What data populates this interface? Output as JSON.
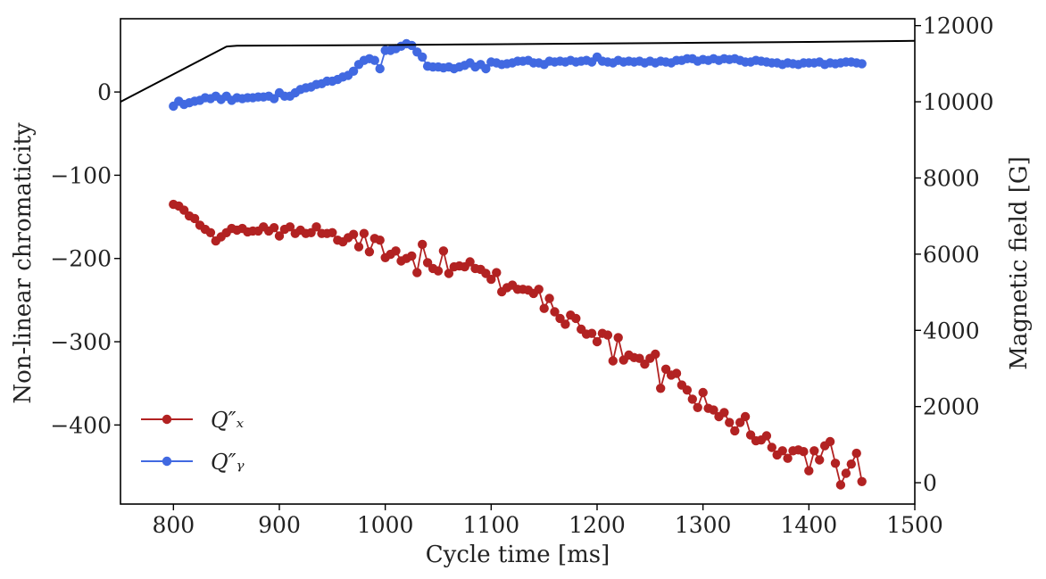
{
  "chart_data": {
    "type": "line",
    "xlabel": "Cycle time [ms]",
    "ylabel": "Non-linear chromaticity",
    "y2label": "Magnetic field [G]",
    "xlim": [
      750,
      1500
    ],
    "ylim": [
      -495,
      88
    ],
    "y2lim": [
      -560,
      12180
    ],
    "xticks": [
      800,
      900,
      1000,
      1100,
      1200,
      1300,
      1400,
      1500
    ],
    "yticks": [
      0,
      -100,
      -200,
      -300,
      -400
    ],
    "y2ticks": [
      0,
      2000,
      4000,
      6000,
      8000,
      10000,
      12000
    ],
    "tick_labels": {
      "x": [
        "800",
        "900",
        "1000",
        "1100",
        "1200",
        "1300",
        "1400",
        "1500"
      ],
      "y": [
        "0",
        "−100",
        "−200",
        "−300",
        "−400"
      ],
      "y2": [
        "0",
        "2000",
        "4000",
        "6000",
        "8000",
        "10000",
        "12000"
      ]
    },
    "grid": false,
    "legend_position": "lower-left",
    "legend": [
      "Q″ₓ",
      "Q″ᵧ"
    ],
    "series": [
      {
        "name": "Q″ₓ",
        "axis": "left",
        "color": "#b22222",
        "marker": "circle",
        "x": [
          800,
          805,
          810,
          815,
          820,
          825,
          830,
          835,
          840,
          845,
          850,
          855,
          860,
          865,
          870,
          875,
          880,
          885,
          890,
          895,
          900,
          905,
          910,
          915,
          920,
          925,
          930,
          935,
          940,
          945,
          950,
          955,
          960,
          965,
          970,
          975,
          980,
          985,
          990,
          995,
          1000,
          1005,
          1010,
          1015,
          1020,
          1025,
          1030,
          1035,
          1040,
          1045,
          1050,
          1055,
          1060,
          1065,
          1070,
          1075,
          1080,
          1085,
          1090,
          1095,
          1100,
          1105,
          1110,
          1115,
          1120,
          1125,
          1130,
          1135,
          1140,
          1145,
          1150,
          1155,
          1160,
          1165,
          1170,
          1175,
          1180,
          1185,
          1190,
          1195,
          1200,
          1205,
          1210,
          1215,
          1220,
          1225,
          1230,
          1235,
          1240,
          1245,
          1250,
          1255,
          1260,
          1265,
          1270,
          1275,
          1280,
          1285,
          1290,
          1295,
          1300,
          1305,
          1310,
          1315,
          1320,
          1325,
          1330,
          1335,
          1340,
          1345,
          1350,
          1355,
          1360,
          1365,
          1370,
          1375,
          1380,
          1385,
          1390,
          1395,
          1400,
          1405,
          1410,
          1415,
          1420,
          1425,
          1430,
          1435,
          1440,
          1445,
          1450
        ],
        "values": [
          -135,
          -137,
          -142,
          -149,
          -152,
          -160,
          -165,
          -169,
          -179,
          -174,
          -169,
          -164,
          -166,
          -164,
          -168,
          -167,
          -167,
          -162,
          -167,
          -163,
          -173,
          -165,
          -162,
          -170,
          -166,
          -170,
          -169,
          -162,
          -170,
          -170,
          -169,
          -178,
          -180,
          -175,
          -171,
          -186,
          -170,
          -192,
          -176,
          -178,
          -199,
          -195,
          -191,
          -203,
          -200,
          -197,
          -217,
          -183,
          -205,
          -212,
          -215,
          -191,
          -218,
          -210,
          -209,
          -210,
          -204,
          -212,
          -213,
          -218,
          -225,
          -217,
          -240,
          -235,
          -232,
          -237,
          -237,
          -238,
          -242,
          -237,
          -260,
          -248,
          -264,
          -272,
          -279,
          -268,
          -272,
          -285,
          -291,
          -290,
          -300,
          -290,
          -292,
          -323,
          -295,
          -322,
          -316,
          -319,
          -320,
          -327,
          -320,
          -315,
          -356,
          -333,
          -340,
          -338,
          -352,
          -358,
          -369,
          -379,
          -361,
          -380,
          -382,
          -390,
          -385,
          -397,
          -407,
          -397,
          -390,
          -412,
          -419,
          -418,
          -413,
          -427,
          -436,
          -431,
          -440,
          -431,
          -430,
          -432,
          -455,
          -431,
          -442,
          -425,
          -420,
          -446,
          -472,
          -458,
          -447,
          -434,
          -468
        ]
      },
      {
        "name": "Q″ᵧ",
        "axis": "left",
        "color": "#4169e1",
        "marker": "circle",
        "x": [
          800,
          805,
          810,
          815,
          820,
          825,
          830,
          835,
          840,
          845,
          850,
          855,
          860,
          865,
          870,
          875,
          880,
          885,
          890,
          895,
          900,
          905,
          910,
          915,
          920,
          925,
          930,
          935,
          940,
          945,
          950,
          955,
          960,
          965,
          970,
          975,
          980,
          985,
          990,
          995,
          1000,
          1005,
          1010,
          1015,
          1020,
          1025,
          1030,
          1035,
          1040,
          1045,
          1050,
          1055,
          1060,
          1065,
          1070,
          1075,
          1080,
          1085,
          1090,
          1095,
          1100,
          1105,
          1110,
          1115,
          1120,
          1125,
          1130,
          1135,
          1140,
          1145,
          1150,
          1155,
          1160,
          1165,
          1170,
          1175,
          1180,
          1185,
          1190,
          1195,
          1200,
          1205,
          1210,
          1215,
          1220,
          1225,
          1230,
          1235,
          1240,
          1245,
          1250,
          1255,
          1260,
          1265,
          1270,
          1275,
          1280,
          1285,
          1290,
          1295,
          1300,
          1305,
          1310,
          1315,
          1320,
          1325,
          1330,
          1335,
          1340,
          1345,
          1350,
          1355,
          1360,
          1365,
          1370,
          1375,
          1380,
          1385,
          1390,
          1395,
          1400,
          1405,
          1410,
          1415,
          1420,
          1425,
          1430,
          1435,
          1440,
          1445,
          1450
        ],
        "values": [
          -17,
          -11,
          -15,
          -13,
          -11,
          -10,
          -7,
          -8,
          -5,
          -9,
          -5,
          -10,
          -7,
          -8,
          -7,
          -7,
          -6,
          -6,
          -5,
          -8,
          -1,
          -5,
          -5,
          -1,
          3,
          5,
          6,
          9,
          10,
          13,
          13,
          15,
          18,
          20,
          25,
          33,
          38,
          40,
          38,
          28,
          50,
          50,
          52,
          55,
          58,
          56,
          48,
          42,
          31,
          30,
          30,
          29,
          30,
          28,
          30,
          32,
          35,
          30,
          33,
          28,
          36,
          35,
          33,
          34,
          35,
          37,
          37,
          38,
          35,
          35,
          33,
          37,
          36,
          37,
          36,
          38,
          36,
          37,
          38,
          36,
          42,
          37,
          36,
          35,
          38,
          36,
          37,
          36,
          37,
          35,
          37,
          35,
          37,
          36,
          35,
          38,
          38,
          40,
          40,
          37,
          39,
          38,
          40,
          38,
          40,
          39,
          40,
          38,
          36,
          36,
          38,
          37,
          36,
          35,
          35,
          33,
          35,
          34,
          33,
          35,
          35,
          35,
          36,
          33,
          35,
          34,
          35,
          36,
          36,
          35,
          34
        ]
      },
      {
        "name": "",
        "axis": "right",
        "color": "#000000",
        "marker": "none",
        "x": [
          750,
          850,
          860,
          1000,
          1100,
          1200,
          1300,
          1400,
          1500
        ],
        "values": [
          10000,
          11450,
          11470,
          11490,
          11510,
          11530,
          11550,
          11570,
          11600
        ]
      }
    ]
  }
}
